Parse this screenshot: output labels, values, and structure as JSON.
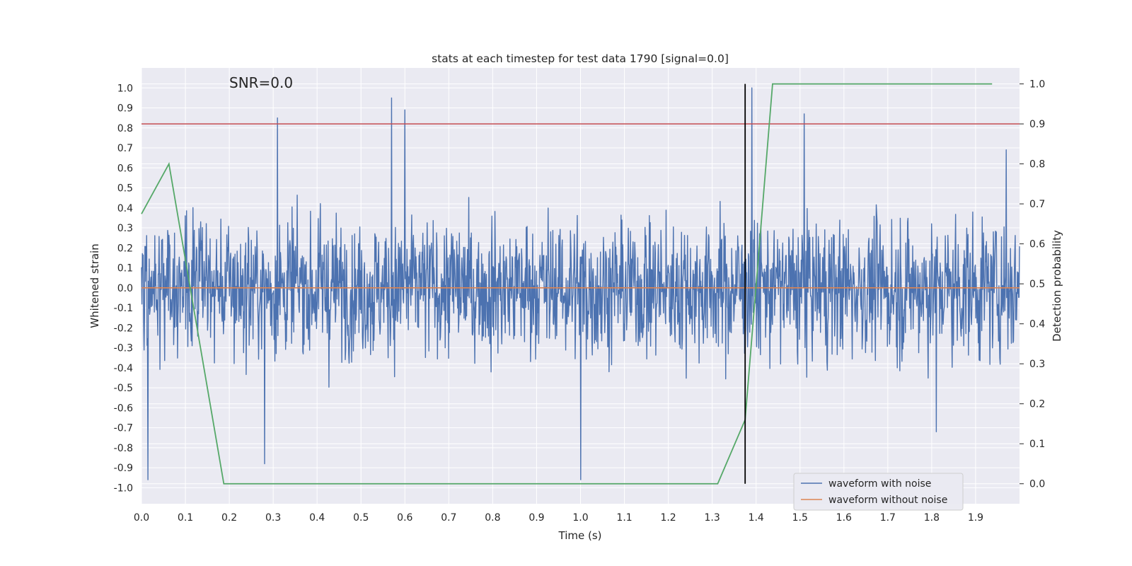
{
  "chart_data": {
    "type": "line",
    "title": "stats at each timestep for test data 1790 [signal=0.0]",
    "xlabel": "Time (s)",
    "ylabel_left": "Whitened strain",
    "ylabel_right": "Detection probability",
    "annotation": "SNR=0.0",
    "xlim": [
      0.0,
      2.0
    ],
    "ylim_left": [
      -1.08,
      1.1
    ],
    "ylim_right": [
      -0.05,
      1.04
    ],
    "x_ticks": [
      "0.0",
      "0.1",
      "0.2",
      "0.3",
      "0.4",
      "0.5",
      "0.6",
      "0.7",
      "0.8",
      "0.9",
      "1.0",
      "1.1",
      "1.2",
      "1.3",
      "1.4",
      "1.5",
      "1.6",
      "1.7",
      "1.8",
      "1.9"
    ],
    "y_ticks_left": [
      "1.0",
      "0.9",
      "0.8",
      "0.7",
      "0.6",
      "0.5",
      "0.4",
      "0.3",
      "0.2",
      "0.1",
      "0.0",
      "-0.1",
      "-0.2",
      "-0.3",
      "-0.4",
      "-0.5",
      "-0.6",
      "-0.7",
      "-0.8",
      "-0.9",
      "-1.0"
    ],
    "y_ticks_right": [
      "1.0",
      "0.9",
      "0.8",
      "0.7",
      "0.6",
      "0.5",
      "0.4",
      "0.3",
      "0.2",
      "0.1",
      "0.0"
    ],
    "grid": true,
    "legend": {
      "location": "lower-right",
      "entries": [
        "waveform with noise",
        "waveform without noise"
      ]
    },
    "colors": {
      "noise": "#4c72b0",
      "clean": "#dd8452",
      "probability": "#55a868",
      "threshold": "#c44e52",
      "marker": "#000000",
      "background": "#eaeaf2",
      "grid": "#ffffff"
    },
    "series": [
      {
        "name": "waveform with noise",
        "axis": "left",
        "kind": "noise",
        "x_range": [
          0.0,
          2.0
        ],
        "n_points": 2048,
        "amplitude_typical": 0.3,
        "peaks": [
          [
            0.57,
            0.95
          ],
          [
            0.6,
            0.89
          ],
          [
            0.31,
            0.85
          ],
          [
            1.51,
            0.87
          ],
          [
            1.39,
            1.0
          ],
          [
            1.97,
            0.69
          ],
          [
            1.81,
            -0.72
          ],
          [
            1.0,
            -0.96
          ],
          [
            0.015,
            -0.96
          ],
          [
            0.28,
            -0.88
          ]
        ]
      },
      {
        "name": "waveform without noise",
        "axis": "left",
        "x": [
          0.0,
          2.0
        ],
        "y": [
          0.0,
          0.0
        ]
      },
      {
        "name": "detection probability",
        "axis": "right",
        "x": [
          0.0,
          0.0625,
          0.1875,
          0.25,
          0.3125,
          1.3125,
          1.375,
          1.4375,
          1.5,
          1.9375
        ],
        "y": [
          0.675,
          0.8,
          0.0,
          0.0,
          0.0,
          0.0,
          0.16,
          1.0,
          1.0,
          1.0
        ]
      },
      {
        "name": "threshold",
        "axis": "right",
        "x": [
          0.0,
          2.0
        ],
        "y": [
          0.9,
          0.9
        ]
      },
      {
        "name": "event marker",
        "axis": "right",
        "x": [
          1.375,
          1.375
        ],
        "y": [
          0.0,
          1.0
        ]
      }
    ]
  }
}
